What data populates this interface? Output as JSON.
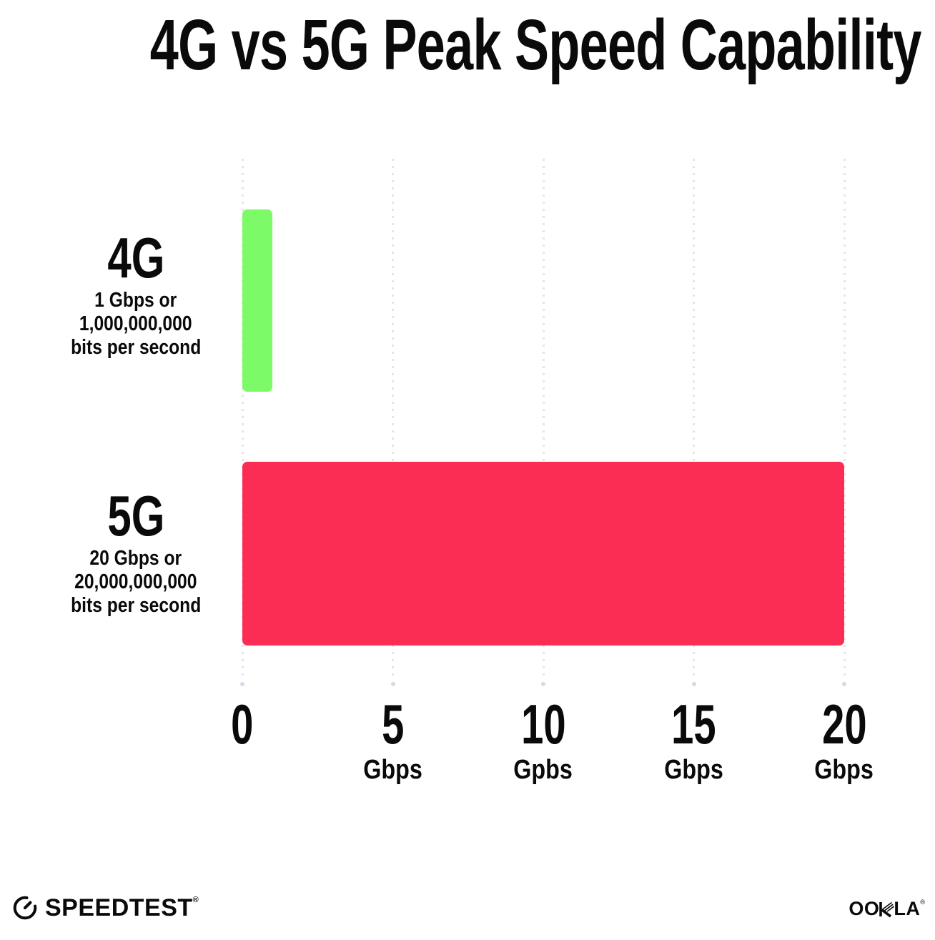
{
  "title": "4G vs 5G Peak Speed Capability",
  "rows": [
    {
      "label": "4G",
      "desc": [
        "1 Gbps or",
        "1,000,000,000",
        "bits per second"
      ]
    },
    {
      "label": "5G",
      "desc": [
        "20 Gbps or",
        "20,000,000,000",
        "bits per second"
      ]
    }
  ],
  "axis": {
    "ticks": [
      {
        "number": "0",
        "unit": ""
      },
      {
        "number": "5",
        "unit": "Gbps"
      },
      {
        "number": "10",
        "unit": "Gpbs"
      },
      {
        "number": "15",
        "unit": "Gbps"
      },
      {
        "number": "20",
        "unit": "Gbps"
      }
    ]
  },
  "footer": {
    "speedtest": {
      "text": "SPEEDTEST",
      "mark": "®"
    },
    "ookla": {
      "part1": "OO",
      "part2": "LA",
      "mark": "®"
    }
  },
  "colors": {
    "background": "#FFFFFF",
    "text": "#0A0A0B",
    "bar_4g": "#7DFA67",
    "bar_5g": "#FC2D55",
    "gridline": "#E3E5EF",
    "grid_end_dot": "#D6DAE8"
  },
  "chart_data": {
    "type": "bar",
    "orientation": "horizontal",
    "title": "4G vs 5G Peak Speed Capability",
    "categories": [
      "4G",
      "5G"
    ],
    "values": [
      1,
      20
    ],
    "unit": "Gbps",
    "xlim": [
      0,
      20
    ],
    "xticks": [
      0,
      5,
      10,
      15,
      20
    ],
    "xtick_labels": [
      "0",
      "5 Gbps",
      "10 Gpbs",
      "15 Gbps",
      "20 Gbps"
    ],
    "bar_colors": [
      "#7DFA67",
      "#FC2D55"
    ],
    "grid": "vertical dotted gridlines at each x tick",
    "legend": "none",
    "annotations": [
      "4G: 1 Gbps or 1,000,000,000 bits per second",
      "5G: 20 Gbps or 20,000,000,000 bits per second"
    ]
  }
}
